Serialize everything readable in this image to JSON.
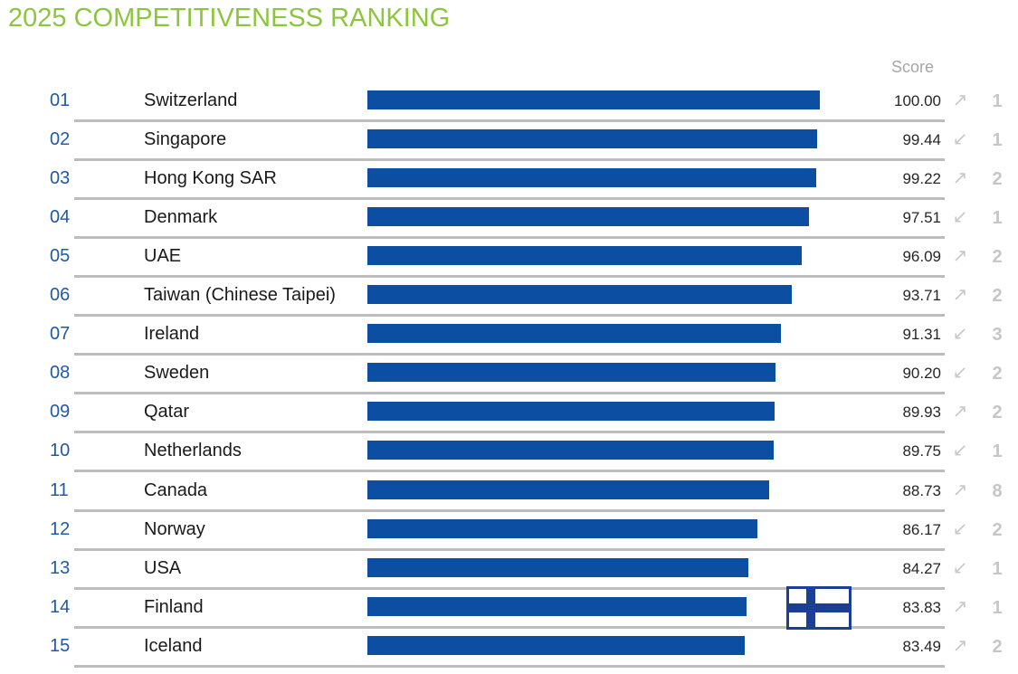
{
  "title": "2025 COMPETITIVENESS RANKING",
  "score_header": "Score",
  "colors": {
    "title": "#8cc63f",
    "bar": "#0b4ea2",
    "rank": "#1f5aa6",
    "divider": "#bdbdbd",
    "finland_flag_blue": "#1b3f94"
  },
  "icons": {
    "up": "arrow-up-right-icon",
    "down": "arrow-down-left-icon",
    "flag": "finland-flag-icon"
  },
  "chart_data": {
    "type": "bar",
    "orientation": "horizontal",
    "title": "2025 COMPETITIVENESS RANKING",
    "value_label": "Score",
    "xlim": [
      0,
      100
    ],
    "grid": false,
    "rows": [
      {
        "rank": "01",
        "country": "Switzerland",
        "score": 100.0,
        "score_text": "100.00",
        "direction": "up",
        "change": "1"
      },
      {
        "rank": "02",
        "country": "Singapore",
        "score": 99.44,
        "score_text": "99.44",
        "direction": "down",
        "change": "1"
      },
      {
        "rank": "03",
        "country": "Hong Kong SAR",
        "score": 99.22,
        "score_text": "99.22",
        "direction": "up",
        "change": "2"
      },
      {
        "rank": "04",
        "country": "Denmark",
        "score": 97.51,
        "score_text": "97.51",
        "direction": "down",
        "change": "1"
      },
      {
        "rank": "05",
        "country": "UAE",
        "score": 96.09,
        "score_text": "96.09",
        "direction": "up",
        "change": "2"
      },
      {
        "rank": "06",
        "country": "Taiwan (Chinese Taipei)",
        "score": 93.71,
        "score_text": "93.71",
        "direction": "up",
        "change": "2"
      },
      {
        "rank": "07",
        "country": "Ireland",
        "score": 91.31,
        "score_text": "91.31",
        "direction": "down",
        "change": "3"
      },
      {
        "rank": "08",
        "country": "Sweden",
        "score": 90.2,
        "score_text": "90.20",
        "direction": "down",
        "change": "2"
      },
      {
        "rank": "09",
        "country": "Qatar",
        "score": 89.93,
        "score_text": "89.93",
        "direction": "up",
        "change": "2"
      },
      {
        "rank": "10",
        "country": "Netherlands",
        "score": 89.75,
        "score_text": "89.75",
        "direction": "down",
        "change": "1"
      },
      {
        "rank": "11",
        "country": "Canada",
        "score": 88.73,
        "score_text": "88.73",
        "direction": "up",
        "change": "8"
      },
      {
        "rank": "12",
        "country": "Norway",
        "score": 86.17,
        "score_text": "86.17",
        "direction": "down",
        "change": "2"
      },
      {
        "rank": "13",
        "country": "USA",
        "score": 84.27,
        "score_text": "84.27",
        "direction": "down",
        "change": "1"
      },
      {
        "rank": "14",
        "country": "Finland",
        "score": 83.83,
        "score_text": "83.83",
        "direction": "up",
        "change": "1"
      },
      {
        "rank": "15",
        "country": "Iceland",
        "score": 83.49,
        "score_text": "83.49",
        "direction": "up",
        "change": "2"
      }
    ]
  }
}
